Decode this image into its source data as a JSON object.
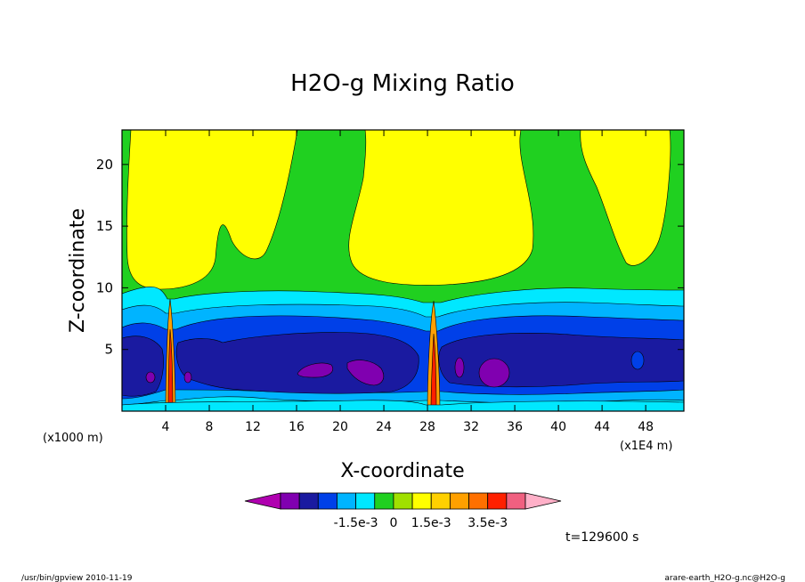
{
  "chart_data": {
    "type": "heatmap",
    "title": "H2O-g Mixing Ratio",
    "xlabel": "X-coordinate",
    "ylabel": "Z-coordinate",
    "x_scale_note": "(x1E4 m)",
    "y_scale_note": "(x1000 m)",
    "xlim": [
      0,
      51.5
    ],
    "ylim": [
      0,
      22.8
    ],
    "x_ticks": [
      4,
      8,
      12,
      16,
      20,
      24,
      28,
      32,
      36,
      40,
      44,
      48
    ],
    "y_ticks": [
      5,
      10,
      15,
      20
    ],
    "colorbar": {
      "colors": [
        "#b000b0",
        "#8000b0",
        "#1a1aa0",
        "#0040e8",
        "#00b4ff",
        "#00e8ff",
        "#20d020",
        "#a0e000",
        "#ffff00",
        "#ffd000",
        "#ffa000",
        "#ff7000",
        "#ff2000",
        "#f06080",
        "#ffb0c8"
      ],
      "labels": [
        "-1.5e-3",
        "0",
        "1.5e-3",
        "3.5e-3"
      ],
      "extend": "both"
    },
    "contour_regions_description_levels": [
      "yellow = high positive",
      "green ~ 0",
      "cyan/blue = negative",
      "purple = most negative"
    ],
    "time_label": "t=129600 s"
  },
  "footer": {
    "left": "/usr/bin/gpview   2010-11-19",
    "right": "arare-earth_H2O-g.nc@H2O-g"
  }
}
